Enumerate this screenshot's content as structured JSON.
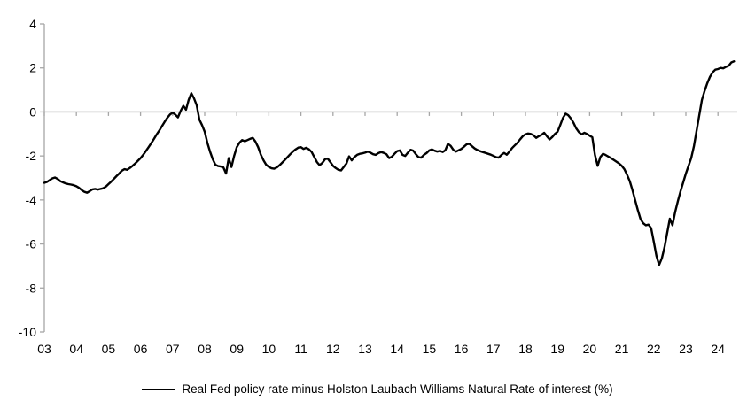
{
  "chart_data": {
    "type": "line",
    "title": "",
    "legend_position": "bottom",
    "background_color": "#ffffff",
    "axis_color": "#a6a6a6",
    "grid": "off",
    "zero_line": true,
    "ylim": [
      -10,
      4
    ],
    "y_axis": {
      "ticks": [
        4,
        2,
        0,
        -2,
        -4,
        -6,
        -8,
        -10
      ]
    },
    "x_axis": {
      "labels": [
        "03",
        "04",
        "05",
        "06",
        "07",
        "08",
        "09",
        "10",
        "11",
        "12",
        "13",
        "14",
        "15",
        "16",
        "17",
        "18",
        "19",
        "20",
        "21",
        "22",
        "23",
        "24"
      ],
      "start_year": 2003,
      "points_per_year": 12
    },
    "series": [
      {
        "name": "Real Fed policy rate minus Holston Laubach Williams Natural Rate of interest (%)",
        "color": "#000000",
        "x_start": 2003.0,
        "x_step_years": 0.08333,
        "values": [
          -3.22,
          -3.18,
          -3.1,
          -3.02,
          -2.98,
          -3.05,
          -3.15,
          -3.2,
          -3.25,
          -3.28,
          -3.3,
          -3.33,
          -3.38,
          -3.45,
          -3.55,
          -3.63,
          -3.67,
          -3.6,
          -3.52,
          -3.5,
          -3.53,
          -3.5,
          -3.47,
          -3.4,
          -3.28,
          -3.17,
          -3.05,
          -2.92,
          -2.8,
          -2.67,
          -2.6,
          -2.63,
          -2.55,
          -2.45,
          -2.34,
          -2.22,
          -2.1,
          -1.95,
          -1.78,
          -1.6,
          -1.42,
          -1.23,
          -1.03,
          -0.85,
          -0.65,
          -0.45,
          -0.27,
          -0.12,
          -0.03,
          -0.12,
          -0.25,
          0.05,
          0.28,
          0.1,
          0.55,
          0.85,
          0.62,
          0.3,
          -0.35,
          -0.6,
          -0.9,
          -1.4,
          -1.8,
          -2.15,
          -2.4,
          -2.46,
          -2.48,
          -2.52,
          -2.8,
          -2.1,
          -2.5,
          -2.0,
          -1.6,
          -1.4,
          -1.28,
          -1.33,
          -1.28,
          -1.22,
          -1.18,
          -1.35,
          -1.6,
          -1.95,
          -2.2,
          -2.4,
          -2.5,
          -2.56,
          -2.58,
          -2.52,
          -2.42,
          -2.3,
          -2.18,
          -2.05,
          -1.92,
          -1.8,
          -1.7,
          -1.62,
          -1.6,
          -1.68,
          -1.63,
          -1.7,
          -1.82,
          -2.05,
          -2.28,
          -2.42,
          -2.32,
          -2.15,
          -2.12,
          -2.28,
          -2.45,
          -2.55,
          -2.63,
          -2.66,
          -2.5,
          -2.35,
          -2.02,
          -2.2,
          -2.05,
          -1.95,
          -1.9,
          -1.88,
          -1.85,
          -1.8,
          -1.85,
          -1.92,
          -1.95,
          -1.87,
          -1.82,
          -1.86,
          -1.92,
          -2.1,
          -2.04,
          -1.9,
          -1.78,
          -1.75,
          -1.95,
          -2.0,
          -1.85,
          -1.72,
          -1.76,
          -1.92,
          -2.06,
          -2.08,
          -1.95,
          -1.87,
          -1.75,
          -1.7,
          -1.76,
          -1.8,
          -1.77,
          -1.82,
          -1.74,
          -1.45,
          -1.54,
          -1.72,
          -1.8,
          -1.74,
          -1.68,
          -1.58,
          -1.47,
          -1.45,
          -1.56,
          -1.66,
          -1.73,
          -1.78,
          -1.82,
          -1.86,
          -1.9,
          -1.94,
          -2.0,
          -2.06,
          -2.08,
          -1.95,
          -1.86,
          -1.94,
          -1.8,
          -1.64,
          -1.52,
          -1.4,
          -1.24,
          -1.1,
          -1.02,
          -0.98,
          -1.0,
          -1.06,
          -1.18,
          -1.1,
          -1.04,
          -0.95,
          -1.1,
          -1.25,
          -1.14,
          -1.0,
          -0.9,
          -0.6,
          -0.28,
          -0.08,
          -0.15,
          -0.3,
          -0.5,
          -0.75,
          -0.92,
          -1.02,
          -0.95,
          -1.0,
          -1.08,
          -1.15,
          -1.95,
          -2.45,
          -2.05,
          -1.9,
          -1.96,
          -2.03,
          -2.1,
          -2.18,
          -2.26,
          -2.34,
          -2.45,
          -2.6,
          -2.85,
          -3.15,
          -3.55,
          -4.0,
          -4.45,
          -4.85,
          -5.05,
          -5.15,
          -5.12,
          -5.28,
          -5.9,
          -6.55,
          -6.95,
          -6.65,
          -6.15,
          -5.5,
          -4.85,
          -5.15,
          -4.55,
          -4.05,
          -3.6,
          -3.2,
          -2.8,
          -2.45,
          -2.1,
          -1.55,
          -0.85,
          -0.15,
          0.55,
          0.95,
          1.3,
          1.6,
          1.8,
          1.92,
          1.95,
          2.0,
          1.98,
          2.05,
          2.1,
          2.25,
          2.3
        ]
      }
    ]
  }
}
